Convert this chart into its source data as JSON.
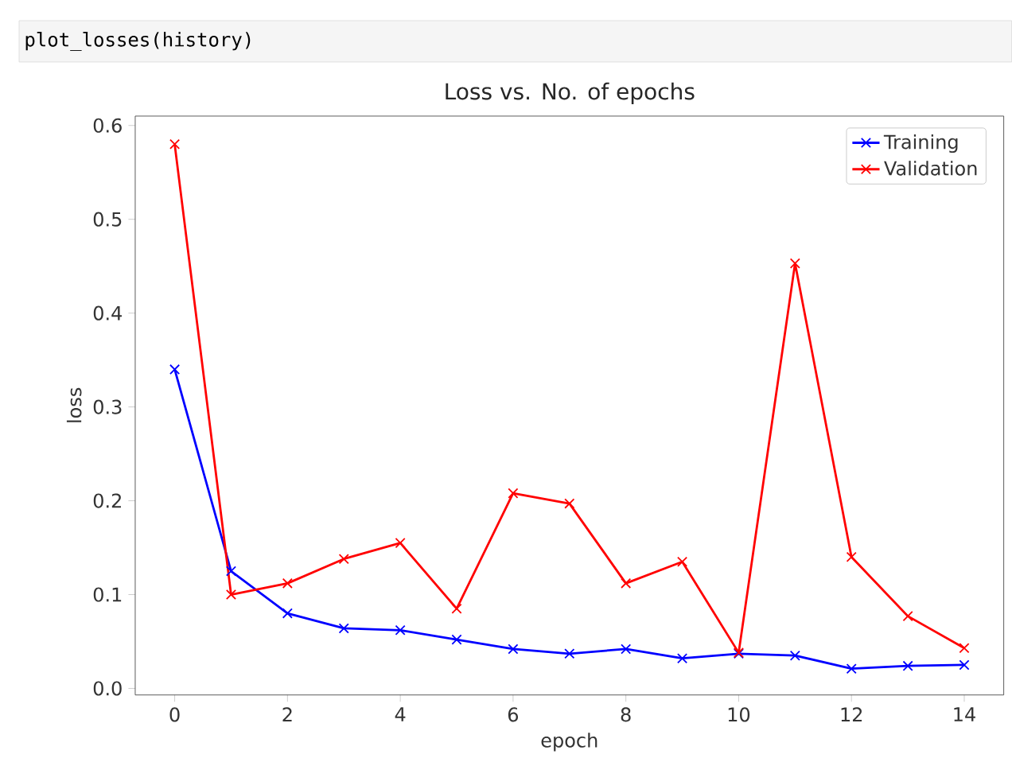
{
  "chart_data": {
    "type": "line",
    "title": "Loss vs. No. of epochs",
    "xlabel": "epoch",
    "ylabel": "loss",
    "annotations": [
      "plot_losses(history)"
    ],
    "x": [
      0,
      1,
      2,
      3,
      4,
      5,
      6,
      7,
      8,
      9,
      10,
      11,
      12,
      13,
      14
    ],
    "series": [
      {
        "name": "Training",
        "color": "#0000ff",
        "values": [
          0.34,
          0.125,
          0.08,
          0.064,
          0.062,
          0.052,
          0.042,
          0.037,
          0.042,
          0.032,
          0.037,
          0.035,
          0.021,
          0.024,
          0.025
        ]
      },
      {
        "name": "Validation",
        "color": "#ff0000",
        "values": [
          0.58,
          0.1,
          0.112,
          0.138,
          0.155,
          0.085,
          0.208,
          0.197,
          0.112,
          0.135,
          0.038,
          0.453,
          0.14,
          0.077,
          0.043
        ]
      }
    ],
    "xlim": [
      -0.7,
      14.7
    ],
    "ylim": [
      -0.007,
      0.61
    ],
    "xticks": [
      0,
      2,
      4,
      6,
      8,
      10,
      12,
      14
    ],
    "yticks": [
      {
        "value": 0,
        "label": "0.0"
      },
      0.1,
      0.2,
      0.3,
      0.4,
      0.5,
      0.6
    ],
    "legend": "top right",
    "marker": "cross",
    "line_style": "solid",
    "grid": false
  }
}
